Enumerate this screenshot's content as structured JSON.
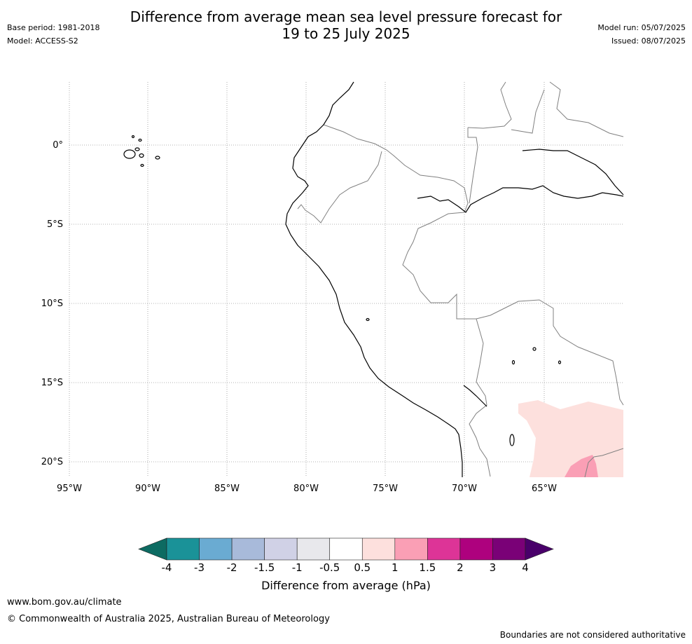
{
  "header": {
    "title_line1": "Difference from average mean sea level pressure forecast for",
    "title_line2": "19 to 25 July 2025",
    "base_period": "Base period: 1981-2018",
    "model": "Model: ACCESS-S2",
    "model_run": "Model run: 05/07/2025",
    "issued": "Issued: 08/07/2025"
  },
  "map": {
    "lon_labels": [
      "95°W",
      "90°W",
      "85°W",
      "80°W",
      "75°W",
      "70°W",
      "65°W"
    ],
    "lat_labels": [
      "0°",
      "5°S",
      "10°S",
      "15°S",
      "20°S"
    ],
    "lon_range": [
      -95,
      -60
    ],
    "lat_range": [
      -21,
      4
    ],
    "grid": true,
    "coast_color": "#000000",
    "border_color": "#808080"
  },
  "colorbar": {
    "label": "Difference from average (hPa)",
    "ticks": [
      "-4",
      "-3",
      "-2",
      "-1.5",
      "-1",
      "-0.5",
      "0.5",
      "1",
      "1.5",
      "2",
      "3",
      "4"
    ],
    "colors": [
      "#0d6b62",
      "#1a9298",
      "#6aabd2",
      "#a8bada",
      "#d0d1e6",
      "#e8e8ec",
      "#ffffff",
      "#fde0dd",
      "#fa9fb5",
      "#dd3497",
      "#ae017e",
      "#7a0177",
      "#49006a"
    ]
  },
  "footer": {
    "url": "www.bom.gov.au/climate",
    "copyright": "© Commonwealth of Australia 2025, Australian Bureau of Meteorology",
    "disclaimer": "Boundaries are not considered authoritative"
  }
}
